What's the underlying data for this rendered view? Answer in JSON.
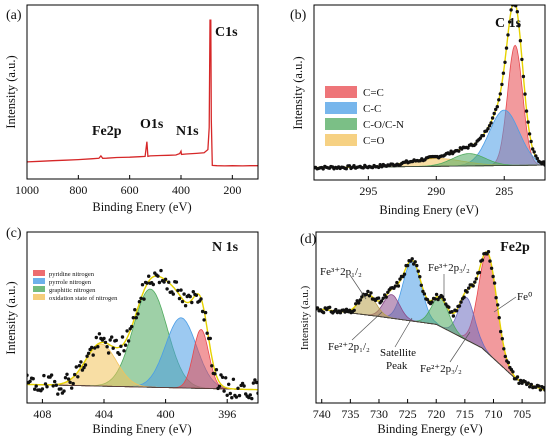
{
  "chart_data": [
    {
      "type": "line",
      "panel": "(a)",
      "xlabel": "Binding Enery (eV)",
      "ylabel": "Intensity (a.u.)",
      "xlim": [
        1000,
        100
      ],
      "xticks": [
        "1000",
        "800",
        "600",
        "400",
        "200"
      ],
      "xtick_values": [
        1000,
        800,
        600,
        400,
        200
      ],
      "series": [
        {
          "color": "#d62728",
          "x": [
            1000,
            950,
            900,
            850,
            800,
            750,
            720,
            712,
            705,
            690,
            650,
            600,
            560,
            540,
            533,
            529,
            520,
            480,
            450,
            420,
            405,
            400,
            398,
            380,
            340,
            310,
            295,
            290,
            287,
            284,
            282,
            278,
            260,
            230,
            200,
            160,
            130,
            100
          ],
          "y": [
            3.2,
            3.6,
            4.0,
            4.3,
            4.7,
            5.2,
            5.5,
            7.0,
            5.5,
            5.6,
            6.0,
            6.2,
            6.5,
            6.7,
            16.0,
            6.8,
            7.0,
            7.3,
            7.4,
            7.6,
            8.5,
            10.0,
            8.0,
            8.2,
            8.6,
            9.0,
            11.0,
            25.0,
            93.0,
            93.0,
            30.0,
            1.0,
            0.8,
            0.7,
            0.8,
            0.7,
            0.8,
            0.8
          ]
        }
      ],
      "ylim": [
        0,
        100
      ],
      "annotations": [
        {
          "text": "C1s",
          "x": 230,
          "y": 96
        },
        {
          "text": "O1s",
          "x": 540,
          "y": 25
        },
        {
          "text": "N1s",
          "x": 400,
          "y": 19
        },
        {
          "text": "Fe2p",
          "x": 710,
          "y": 17
        }
      ]
    },
    {
      "type": "area",
      "panel": "(b)",
      "title": "C 1s",
      "xlabel": "Binding Enery (eV)",
      "ylabel": "Intensity (a.u.)",
      "xlim": [
        299,
        282
      ],
      "xticks": [
        "295",
        "290",
        "285"
      ],
      "xtick_values": [
        295,
        290,
        285
      ],
      "ylim": [
        0,
        100
      ],
      "baseline": 8,
      "components": [
        {
          "name": "C=C",
          "color": "#e8474c",
          "center": 284.2,
          "height": 78,
          "width": 0.55
        },
        {
          "name": "C-C",
          "color": "#4a9de6",
          "center": 285.0,
          "height": 36,
          "width": 1.1
        },
        {
          "name": "C-O/C-N",
          "color": "#4faa5e",
          "center": 287.6,
          "height": 8,
          "width": 1.2
        },
        {
          "name": "C=O",
          "color": "#f3c25a",
          "center": 290.0,
          "height": 5,
          "width": 2.0
        }
      ],
      "legend": [
        "C=C",
        "C-C",
        "C-O/C-N",
        "C=O"
      ],
      "legend_position": "center-left",
      "markers": "black dots"
    },
    {
      "type": "area",
      "panel": "(c)",
      "title": "N 1s",
      "xlabel": "Binding Enery (eV)",
      "ylabel": "Intensity (a.u.)",
      "xlim": [
        409,
        394
      ],
      "xticks": [
        "408",
        "404",
        "400",
        "396"
      ],
      "xtick_values": [
        408,
        404,
        400,
        396
      ],
      "ylim": [
        0,
        100
      ],
      "baseline": 10,
      "components": [
        {
          "name": "pyridine nitrogen",
          "color": "#e8474c",
          "center": 397.7,
          "height": 42,
          "width": 0.5
        },
        {
          "name": "pyrrole nitrogen",
          "color": "#4a9de6",
          "center": 399.0,
          "height": 50,
          "width": 1.0
        },
        {
          "name": "graphitic nitrogen",
          "color": "#4faa5e",
          "center": 401.0,
          "height": 70,
          "width": 1.1
        },
        {
          "name": "oxidation state of nitrogen",
          "color": "#f3c25a",
          "center": 404.2,
          "height": 30,
          "width": 1.0
        }
      ],
      "legend": [
        "pyridine nitrogen",
        "pyrrole nitrogen",
        "graphitic nitrogen",
        "oxidation state of nitrogen"
      ],
      "legend_position": "top-left",
      "markers": "black dots"
    },
    {
      "type": "area",
      "panel": "(d)",
      "title": "Fe2p",
      "xlabel": "Binding Energy (eV)",
      "ylabel": "Intensity (a.u.)",
      "xlim": [
        741,
        701
      ],
      "xticks": [
        "740",
        "735",
        "730",
        "725",
        "720",
        "715",
        "710",
        "705"
      ],
      "xtick_values": [
        740,
        735,
        730,
        725,
        720,
        715,
        710,
        705
      ],
      "ylim": [
        0,
        100
      ],
      "baseline_points": [
        [
          741,
          60
        ],
        [
          730,
          55
        ],
        [
          720,
          50
        ],
        [
          712,
          35
        ],
        [
          706,
          15
        ],
        [
          701,
          8
        ]
      ],
      "components": [
        {
          "color": "#b8a04a",
          "center": 732.0,
          "height": 13,
          "width": 1.5
        },
        {
          "color": "#8a4a8a",
          "center": 727.8,
          "height": 15,
          "width": 1.4
        },
        {
          "color": "#4a9de6",
          "center": 724.2,
          "height": 38,
          "width": 1.6
        },
        {
          "color": "#4faa5e",
          "center": 719.3,
          "height": 18,
          "width": 1.5
        },
        {
          "color": "#6c6cc0",
          "center": 714.7,
          "height": 27,
          "width": 1.4
        },
        {
          "color": "#e8474c",
          "center": 711.0,
          "height": 63,
          "width": 1.6
        }
      ],
      "annotations": [
        "Fe³⁺2p₁/₂",
        "Fe³⁺2p₃/₂",
        "Fe⁰",
        "Fe²⁺2p₁/₂",
        "Satellite",
        "Peak",
        "Fe²⁺2p₃/₂"
      ],
      "markers": "black dots"
    }
  ]
}
